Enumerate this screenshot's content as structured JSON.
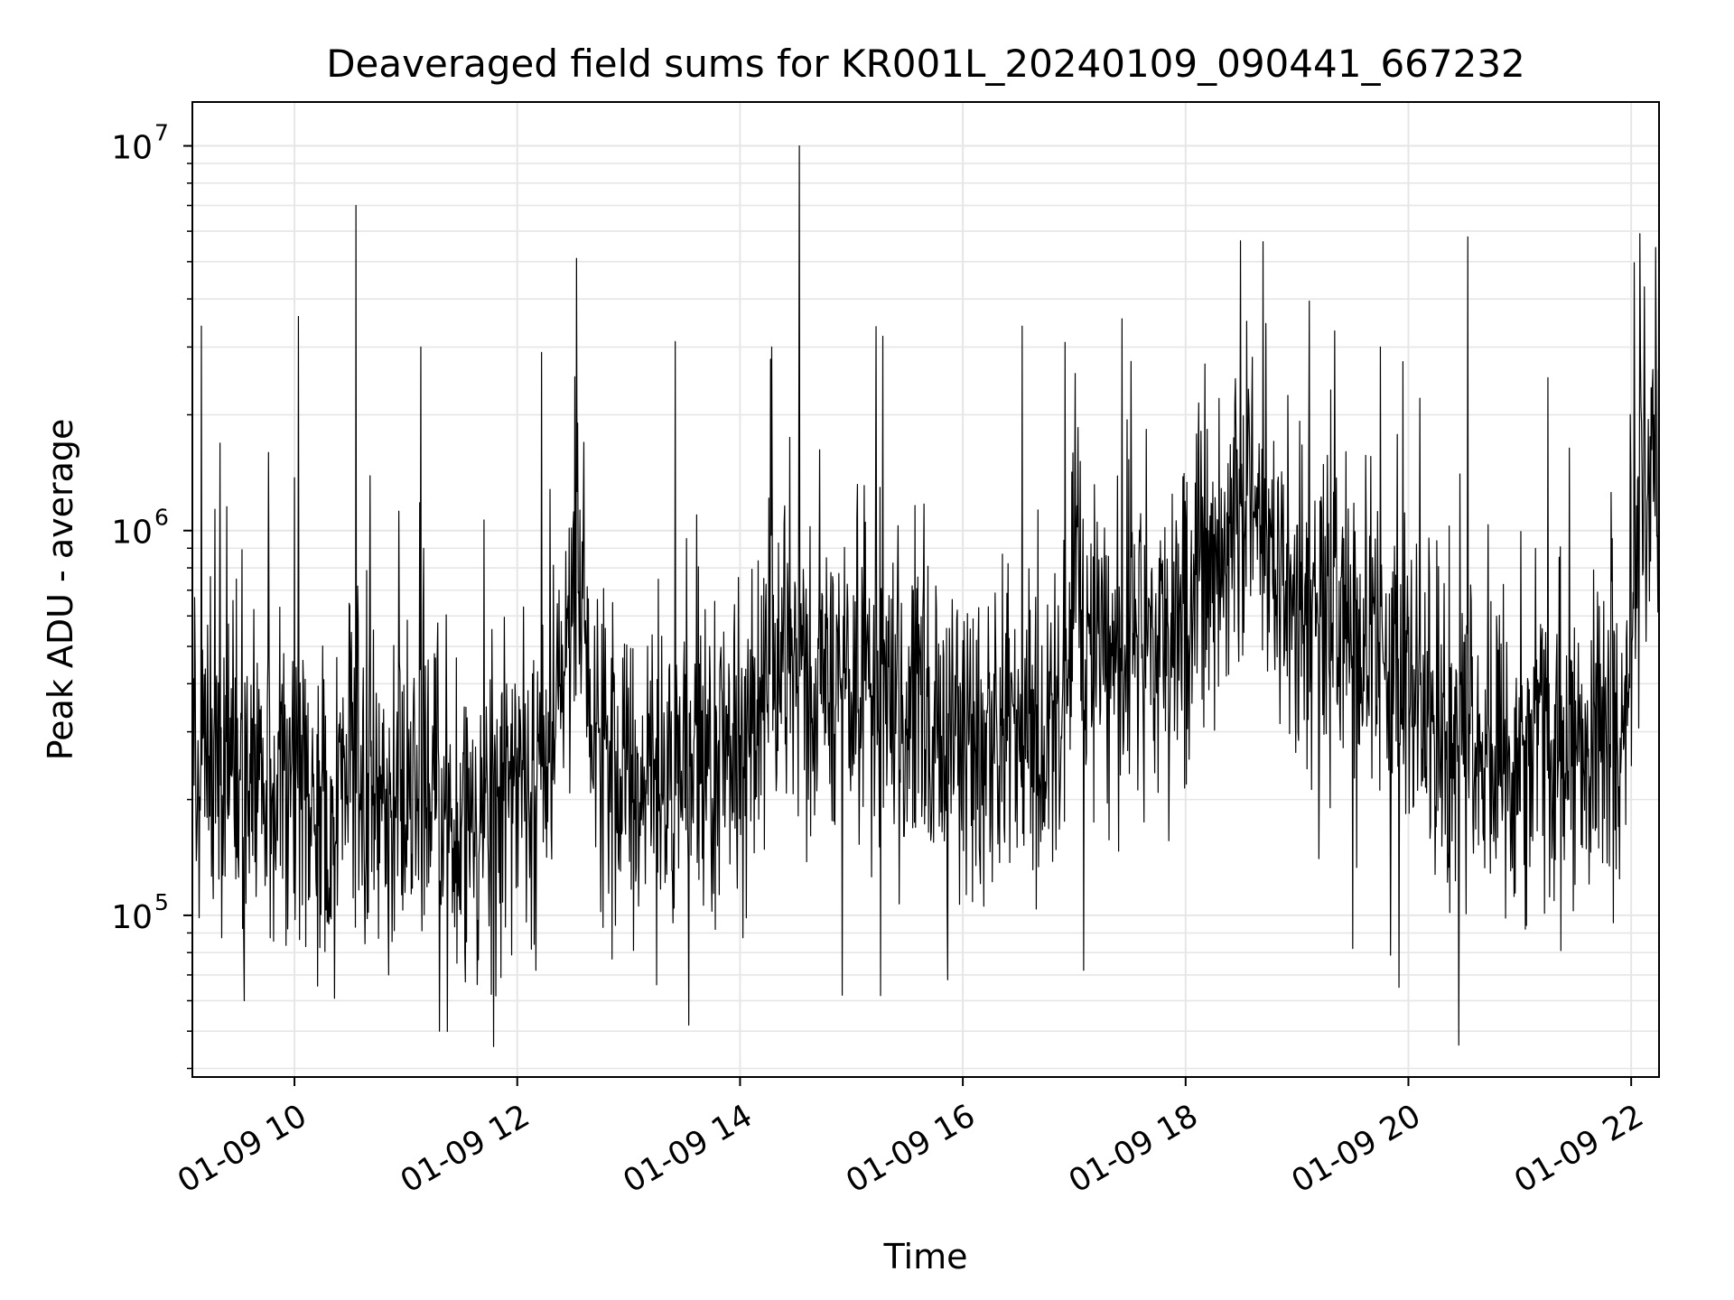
{
  "chart_data": {
    "type": "line",
    "title": "Deaveraged field sums for KR001L_20240109_090441_667232",
    "xlabel": "Time",
    "ylabel": "Peak ADU - average",
    "yscale": "log",
    "xlim": [
      "2024-01-09 09:05",
      "2024-01-09 22:15"
    ],
    "ylim": [
      38000,
      13000000
    ],
    "grid": true,
    "legend": "none",
    "line_color": "#000000",
    "grid_color": "#e6e6e6",
    "x_ticks": [
      {
        "value": "2024-01-09 10:00",
        "label": "01-09 10"
      },
      {
        "value": "2024-01-09 12:00",
        "label": "01-09 12"
      },
      {
        "value": "2024-01-09 14:00",
        "label": "01-09 14"
      },
      {
        "value": "2024-01-09 16:00",
        "label": "01-09 16"
      },
      {
        "value": "2024-01-09 18:00",
        "label": "01-09 18"
      },
      {
        "value": "2024-01-09 20:00",
        "label": "01-09 20"
      },
      {
        "value": "2024-01-09 22:00",
        "label": "01-09 22"
      }
    ],
    "y_ticks": [
      {
        "value": 100000,
        "base": "10",
        "exp": "5"
      },
      {
        "value": 1000000,
        "base": "10",
        "exp": "6"
      },
      {
        "value": 10000000,
        "base": "10",
        "exp": "7"
      }
    ],
    "baseline": [
      [
        "2024-01-09 09:05",
        300000
      ],
      [
        "2024-01-09 10:00",
        200000
      ],
      [
        "2024-01-09 11:00",
        220000
      ],
      [
        "2024-01-09 11:30",
        180000
      ],
      [
        "2024-01-09 12:15",
        250000
      ],
      [
        "2024-01-09 12:30",
        700000
      ],
      [
        "2024-01-09 12:45",
        220000
      ],
      [
        "2024-01-09 13:45",
        220000
      ],
      [
        "2024-01-09 14:20",
        450000
      ],
      [
        "2024-01-09 15:30",
        350000
      ],
      [
        "2024-01-09 16:00",
        300000
      ],
      [
        "2024-01-09 16:55",
        280000
      ],
      [
        "2024-01-09 17:00",
        800000
      ],
      [
        "2024-01-09 17:10",
        450000
      ],
      [
        "2024-01-09 18:00",
        550000
      ],
      [
        "2024-01-09 18:30",
        1100000
      ],
      [
        "2024-01-09 19:00",
        650000
      ],
      [
        "2024-01-09 20:00",
        450000
      ],
      [
        "2024-01-09 20:20",
        260000
      ],
      [
        "2024-01-09 21:55",
        280000
      ],
      [
        "2024-01-09 22:05",
        1200000
      ],
      [
        "2024-01-09 22:15",
        1200000
      ]
    ],
    "peaks": [
      [
        "2024-01-09 10:33",
        7000000
      ],
      [
        "2024-01-09 12:32",
        5100000
      ],
      [
        "2024-01-09 14:32",
        10000000
      ],
      [
        "2024-01-09 20:32",
        5800000
      ],
      [
        "2024-01-09 22:07",
        4300000
      ],
      [
        "2024-01-09 10:02",
        3600000
      ],
      [
        "2024-01-09 09:10",
        3400000
      ],
      [
        "2024-01-09 16:32",
        3400000
      ],
      [
        "2024-01-09 18:33",
        3500000
      ],
      [
        "2024-01-09 15:17",
        3200000
      ],
      [
        "2024-01-09 14:17",
        3000000
      ],
      [
        "2024-01-09 11:08",
        3000000
      ],
      [
        "2024-01-09 13:25",
        3100000
      ],
      [
        "2024-01-09 19:45",
        3000000
      ]
    ],
    "dips": [
      [
        "2024-01-09 11:18",
        50000
      ],
      [
        "2024-01-09 20:27",
        46000
      ],
      [
        "2024-01-09 09:33",
        60000
      ],
      [
        "2024-01-09 14:55",
        62000
      ],
      [
        "2024-01-09 19:55",
        65000
      ],
      [
        "2024-01-09 15:52",
        68000
      ],
      [
        "2024-01-09 13:15",
        66000
      ],
      [
        "2024-01-09 17:05",
        72000
      ],
      [
        "2024-01-09 12:10",
        72000
      ],
      [
        "2024-01-09 19:30",
        82000
      ]
    ]
  }
}
